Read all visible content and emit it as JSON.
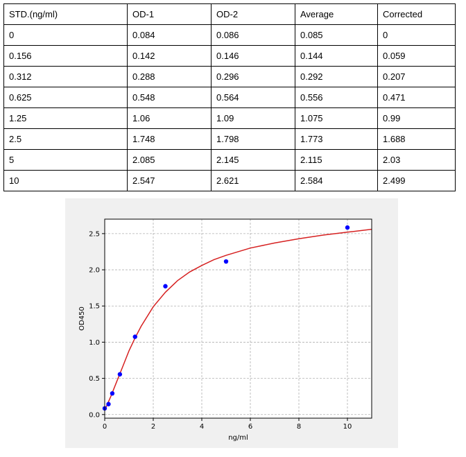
{
  "table": {
    "headers": [
      "STD.(ng/ml)",
      "OD-1",
      "OD-2",
      "Average",
      "Corrected"
    ],
    "rows": [
      [
        "0",
        "0.084",
        "0.086",
        "0.085",
        "0"
      ],
      [
        "0.156",
        "0.142",
        "0.146",
        "0.144",
        "0.059"
      ],
      [
        "0.312",
        "0.288",
        "0.296",
        "0.292",
        "0.207"
      ],
      [
        "0.625",
        "0.548",
        "0.564",
        "0.556",
        "0.471"
      ],
      [
        "1.25",
        "1.06",
        "1.09",
        "1.075",
        "0.99"
      ],
      [
        "2.5",
        "1.748",
        "1.798",
        "1.773",
        "1.688"
      ],
      [
        "5",
        "2.085",
        "2.145",
        "2.115",
        "2.03"
      ],
      [
        "10",
        "2.547",
        "2.621",
        "2.584",
        "2.499"
      ]
    ]
  },
  "chart_data": {
    "type": "scatter",
    "title": "",
    "xlabel": "ng/ml",
    "ylabel": "OD450",
    "xlim": [
      0,
      11
    ],
    "ylim": [
      -0.05,
      2.7
    ],
    "xticks": [
      0,
      2,
      4,
      6,
      8,
      10
    ],
    "yticks": [
      0.0,
      0.5,
      1.0,
      1.5,
      2.0,
      2.5
    ],
    "grid": true,
    "series": [
      {
        "kind": "points",
        "color": "#0000ff",
        "x": [
          0,
          0.156,
          0.312,
          0.625,
          1.25,
          2.5,
          5,
          10
        ],
        "y": [
          0.085,
          0.144,
          0.292,
          0.556,
          1.075,
          1.773,
          2.115,
          2.584
        ]
      },
      {
        "kind": "fitted-curve",
        "color": "#d62020",
        "x": [
          0,
          0.25,
          0.5,
          0.75,
          1,
          1.25,
          1.5,
          2,
          2.5,
          3,
          3.5,
          4,
          4.5,
          5,
          6,
          7,
          8,
          9,
          10,
          11
        ],
        "y": [
          0.06,
          0.25,
          0.46,
          0.67,
          0.88,
          1.06,
          1.22,
          1.49,
          1.69,
          1.85,
          1.97,
          2.06,
          2.14,
          2.2,
          2.3,
          2.37,
          2.43,
          2.48,
          2.52,
          2.56
        ]
      }
    ]
  }
}
